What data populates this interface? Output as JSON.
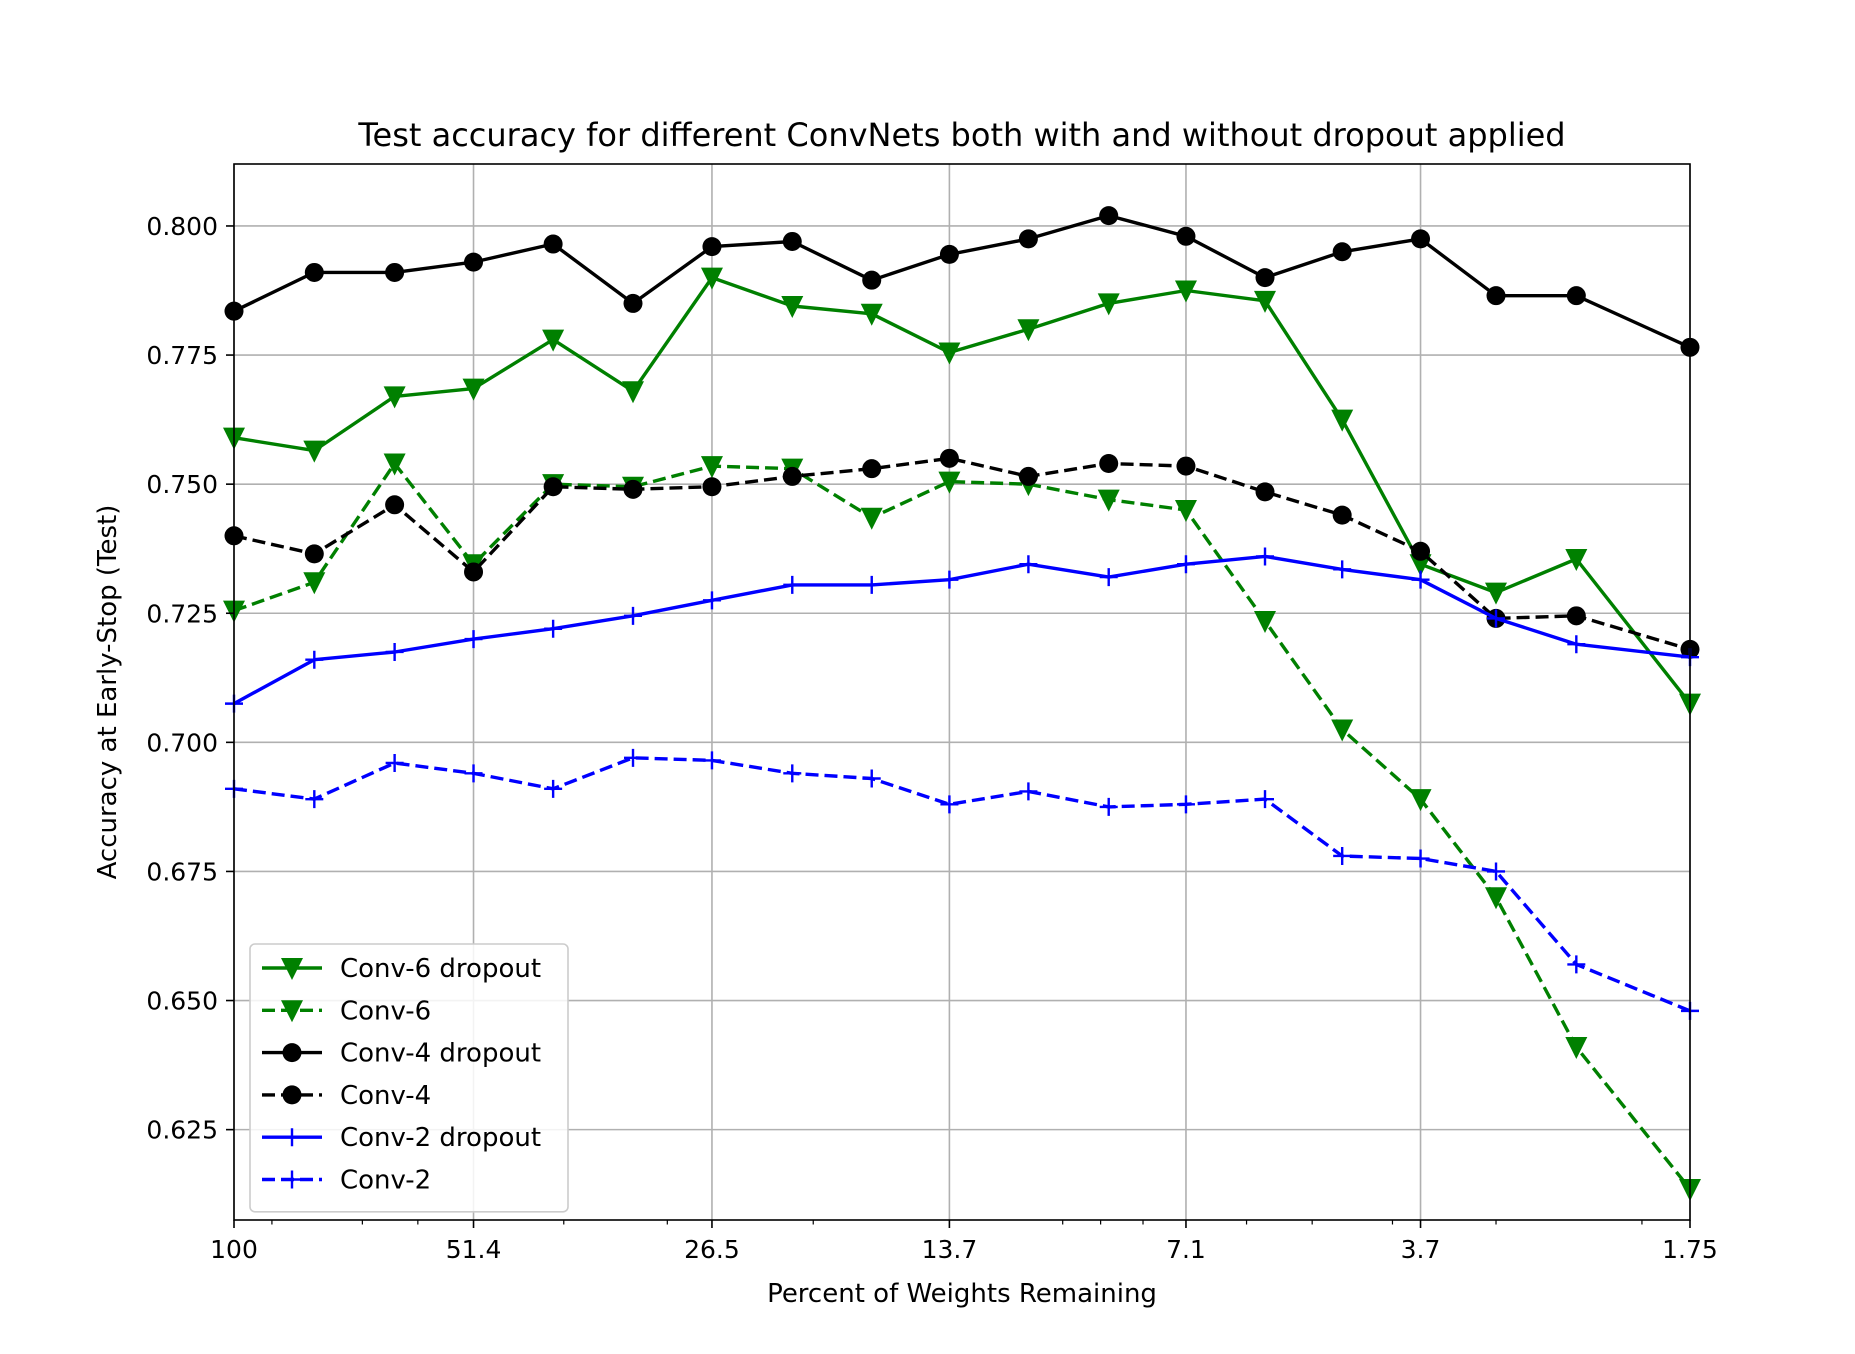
{
  "chart_data": {
    "type": "line",
    "title": "Test accuracy for different ConvNets both with and without dropout applied",
    "xlabel": "Percent of Weights Remaining",
    "ylabel": "Accuracy at Early-Stop (Test)",
    "x_scale": "log",
    "x_reversed": true,
    "x": [
      100,
      80,
      64,
      51.4,
      41.2,
      33.0,
      26.5,
      21.2,
      17.0,
      13.7,
      11.0,
      8.8,
      7.1,
      5.7,
      4.6,
      3.7,
      3.0,
      2.4,
      1.75
    ],
    "xlim": [
      100,
      1.75
    ],
    "xticks": [
      100,
      51.4,
      26.5,
      13.7,
      7.1,
      3.7,
      1.75
    ],
    "xtick_labels": [
      "100",
      "51.4",
      "26.5",
      "13.7",
      "7.1",
      "3.7",
      "1.75"
    ],
    "ylim": [
      0.6075,
      0.812
    ],
    "yticks": [
      0.625,
      0.65,
      0.675,
      0.7,
      0.725,
      0.75,
      0.775,
      0.8
    ],
    "ytick_labels": [
      "0.625",
      "0.650",
      "0.675",
      "0.700",
      "0.725",
      "0.750",
      "0.775",
      "0.800"
    ],
    "grid": true,
    "legend_position": "lower-left",
    "series": [
      {
        "name": "Conv-6 dropout",
        "color": "#008000",
        "dash": "solid",
        "marker": "triangle-down",
        "values": [
          0.759,
          0.7565,
          0.767,
          0.7685,
          0.778,
          0.768,
          0.79,
          0.7845,
          0.783,
          0.7755,
          0.78,
          0.785,
          0.7875,
          0.7855,
          0.7625,
          0.7345,
          0.729,
          0.7355,
          0.7075
        ]
      },
      {
        "name": "Conv-6",
        "color": "#008000",
        "dash": "dashed",
        "marker": "triangle-down",
        "values": [
          0.7255,
          0.731,
          0.754,
          0.7345,
          0.75,
          0.7495,
          0.7535,
          0.753,
          0.7435,
          0.7505,
          0.75,
          0.747,
          0.745,
          0.7235,
          0.7025,
          0.689,
          0.67,
          0.641,
          0.6135
        ]
      },
      {
        "name": "Conv-4 dropout",
        "color": "#000000",
        "dash": "solid",
        "marker": "circle",
        "values": [
          0.7835,
          0.791,
          0.791,
          0.793,
          0.7965,
          0.785,
          0.796,
          0.797,
          0.7895,
          0.7945,
          0.7975,
          0.802,
          0.798,
          0.79,
          0.795,
          0.7975,
          0.7865,
          0.7865,
          0.7765
        ]
      },
      {
        "name": "Conv-4",
        "color": "#000000",
        "dash": "dashed",
        "marker": "circle",
        "values": [
          0.74,
          0.7365,
          0.746,
          0.733,
          0.7495,
          0.749,
          0.7495,
          0.7515,
          0.753,
          0.755,
          0.7515,
          0.754,
          0.7535,
          0.7485,
          0.744,
          0.737,
          0.724,
          0.7245,
          0.718
        ]
      },
      {
        "name": "Conv-2 dropout",
        "color": "#0000ff",
        "dash": "solid",
        "marker": "plus",
        "values": [
          0.7075,
          0.716,
          0.7175,
          0.72,
          0.722,
          0.7245,
          0.7275,
          0.7305,
          0.7305,
          0.7315,
          0.7345,
          0.732,
          0.7345,
          0.736,
          0.7335,
          0.7315,
          0.724,
          0.719,
          0.7165
        ]
      },
      {
        "name": "Conv-2",
        "color": "#0000ff",
        "dash": "dashed",
        "marker": "plus",
        "values": [
          0.691,
          0.689,
          0.696,
          0.694,
          0.691,
          0.697,
          0.6965,
          0.694,
          0.693,
          0.688,
          0.6905,
          0.6875,
          0.688,
          0.689,
          0.678,
          0.6775,
          0.675,
          0.657,
          0.648
        ]
      }
    ]
  }
}
